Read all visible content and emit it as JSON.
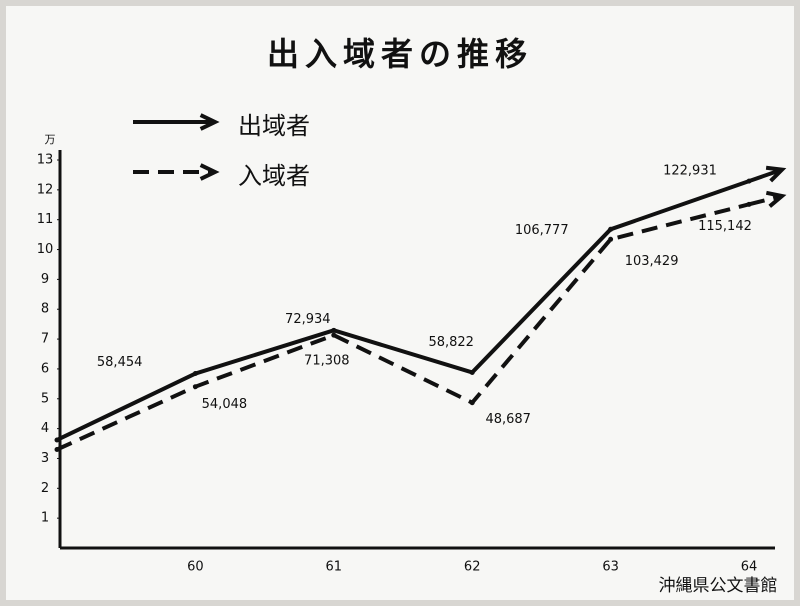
{
  "chart_data": {
    "type": "line",
    "title": "出入域者の推移",
    "y_unit": "万",
    "categories": [
      null,
      "60",
      "61",
      "62",
      "63",
      "64"
    ],
    "series": [
      {
        "name": "出域者",
        "color": "#111111",
        "dash": false,
        "values": [
          3.62,
          5.8454,
          7.2934,
          5.8822,
          10.6777,
          12.2931
        ],
        "value_labels": [
          null,
          "58,454",
          "72,934",
          "58,822",
          "106,777",
          "122,931"
        ]
      },
      {
        "name": "入域者",
        "color": "#111111",
        "dash": true,
        "values": [
          3.3,
          5.4048,
          7.1308,
          4.8687,
          10.3429,
          11.5142
        ],
        "value_labels": [
          null,
          "54,048",
          "71,308",
          "48,687",
          "103,429",
          "115,142"
        ]
      }
    ],
    "ylim": [
      0,
      13
    ],
    "yticks": [
      1,
      2,
      3,
      4,
      5,
      6,
      7,
      8,
      9,
      10,
      11,
      12,
      13
    ],
    "grid": false
  },
  "watermark": "沖縄県公文書館"
}
